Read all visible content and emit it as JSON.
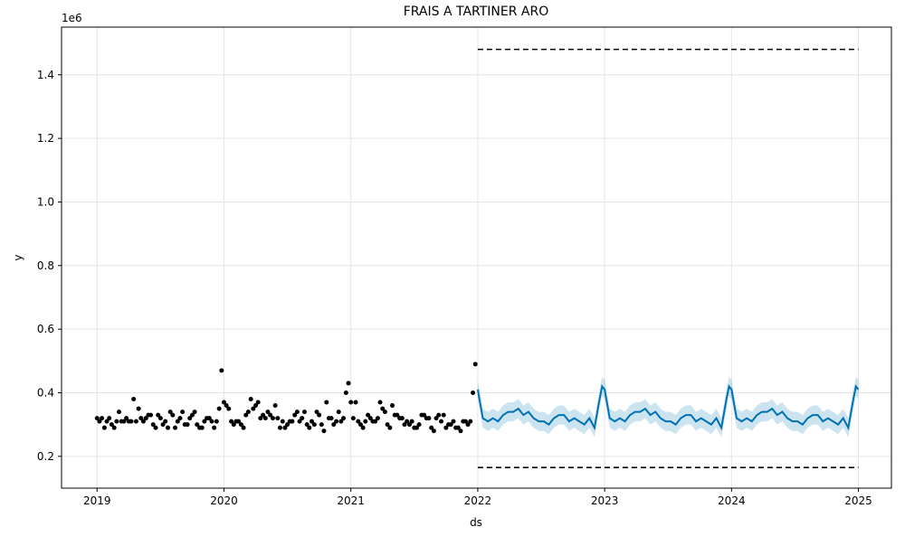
{
  "chart_data": {
    "type": "line",
    "title": "FRAIS A TARTINER ARO",
    "x_label": "ds",
    "y_label": "y",
    "y_offset_label": "1e6",
    "xlim": [
      2018.72,
      2025.26
    ],
    "ylim": [
      0.1,
      1.55
    ],
    "xticks": [
      2019,
      2020,
      2021,
      2022,
      2023,
      2024,
      2025
    ],
    "yticks": [
      0.2,
      0.4,
      0.6,
      0.8,
      {
        "value": 1.0,
        "label": "1.0"
      },
      1.2,
      1.4
    ],
    "grid": true,
    "series": [
      {
        "type": "scatter",
        "color": "#000000",
        "x": [
          2019,
          2019.019,
          2019.038,
          2019.058,
          2019.077,
          2019.096,
          2019.115,
          2019.135,
          2019.154,
          2019.173,
          2019.192,
          2019.212,
          2019.231,
          2019.25,
          2019.269,
          2019.288,
          2019.308,
          2019.327,
          2019.346,
          2019.365,
          2019.385,
          2019.404,
          2019.423,
          2019.442,
          2019.462,
          2019.481,
          2019.5,
          2019.519,
          2019.538,
          2019.558,
          2019.577,
          2019.596,
          2019.615,
          2019.635,
          2019.654,
          2019.673,
          2019.692,
          2019.712,
          2019.731,
          2019.75,
          2019.769,
          2019.788,
          2019.808,
          2019.827,
          2019.846,
          2019.865,
          2019.885,
          2019.904,
          2019.923,
          2019.942,
          2019.962,
          2019.981,
          2020,
          2020.019,
          2020.038,
          2020.058,
          2020.077,
          2020.096,
          2020.115,
          2020.135,
          2020.154,
          2020.173,
          2020.192,
          2020.212,
          2020.231,
          2020.25,
          2020.269,
          2020.288,
          2020.308,
          2020.327,
          2020.346,
          2020.365,
          2020.385,
          2020.404,
          2020.423,
          2020.442,
          2020.462,
          2020.481,
          2020.5,
          2020.519,
          2020.538,
          2020.558,
          2020.577,
          2020.596,
          2020.615,
          2020.635,
          2020.654,
          2020.673,
          2020.692,
          2020.712,
          2020.731,
          2020.75,
          2020.769,
          2020.788,
          2020.808,
          2020.827,
          2020.846,
          2020.865,
          2020.885,
          2020.904,
          2020.923,
          2020.942,
          2020.962,
          2020.981,
          2021,
          2021.019,
          2021.038,
          2021.058,
          2021.077,
          2021.096,
          2021.115,
          2021.135,
          2021.154,
          2021.173,
          2021.192,
          2021.212,
          2021.231,
          2021.25,
          2021.269,
          2021.288,
          2021.308,
          2021.327,
          2021.346,
          2021.365,
          2021.385,
          2021.404,
          2021.423,
          2021.442,
          2021.462,
          2021.481,
          2021.5,
          2021.519,
          2021.538,
          2021.558,
          2021.577,
          2021.596,
          2021.615,
          2021.635,
          2021.654,
          2021.673,
          2021.692,
          2021.712,
          2021.731,
          2021.75,
          2021.769,
          2021.788,
          2021.808,
          2021.827,
          2021.846,
          2021.865,
          2021.885,
          2021.904,
          2021.923,
          2021.942,
          2021.962,
          2021.981
        ],
        "values": [
          0.32,
          0.31,
          0.32,
          0.29,
          0.31,
          0.32,
          0.3,
          0.29,
          0.31,
          0.34,
          0.31,
          0.31,
          0.32,
          0.31,
          0.31,
          0.38,
          0.31,
          0.35,
          0.32,
          0.31,
          0.32,
          0.33,
          0.33,
          0.3,
          0.29,
          0.33,
          0.32,
          0.3,
          0.31,
          0.29,
          0.34,
          0.33,
          0.29,
          0.31,
          0.32,
          0.34,
          0.3,
          0.3,
          0.32,
          0.33,
          0.34,
          0.3,
          0.29,
          0.29,
          0.31,
          0.32,
          0.32,
          0.31,
          0.29,
          0.31,
          0.35,
          0.47,
          0.37,
          0.36,
          0.35,
          0.31,
          0.3,
          0.31,
          0.31,
          0.3,
          0.29,
          0.33,
          0.34,
          0.38,
          0.35,
          0.36,
          0.37,
          0.32,
          0.33,
          0.32,
          0.34,
          0.33,
          0.32,
          0.36,
          0.32,
          0.29,
          0.31,
          0.29,
          0.3,
          0.31,
          0.31,
          0.33,
          0.34,
          0.31,
          0.32,
          0.34,
          0.3,
          0.29,
          0.31,
          0.3,
          0.34,
          0.33,
          0.3,
          0.28,
          0.37,
          0.32,
          0.32,
          0.3,
          0.31,
          0.34,
          0.31,
          0.32,
          0.4,
          0.43,
          0.37,
          0.32,
          0.37,
          0.31,
          0.3,
          0.29,
          0.31,
          0.33,
          0.32,
          0.31,
          0.31,
          0.32,
          0.37,
          0.35,
          0.34,
          0.3,
          0.29,
          0.36,
          0.33,
          0.33,
          0.32,
          0.32,
          0.3,
          0.31,
          0.3,
          0.31,
          0.29,
          0.29,
          0.3,
          0.33,
          0.33,
          0.32,
          0.32,
          0.29,
          0.28,
          0.32,
          0.33,
          0.31,
          0.33,
          0.29,
          0.3,
          0.3,
          0.31,
          0.29,
          0.29,
          0.28,
          0.31,
          0.31,
          0.3,
          0.31,
          0.4,
          0.49
        ]
      },
      {
        "type": "line",
        "color": "#0072B2",
        "band_color": "#0072B2",
        "x": [
          2022,
          2022.04,
          2022.08,
          2022.12,
          2022.16,
          2022.2,
          2022.24,
          2022.28,
          2022.32,
          2022.36,
          2022.4,
          2022.44,
          2022.48,
          2022.52,
          2022.56,
          2022.6,
          2022.64,
          2022.68,
          2022.72,
          2022.76,
          2022.8,
          2022.84,
          2022.88,
          2022.92,
          2022.96,
          2022.98,
          2023,
          2023.04,
          2023.08,
          2023.12,
          2023.16,
          2023.2,
          2023.24,
          2023.28,
          2023.32,
          2023.36,
          2023.4,
          2023.44,
          2023.48,
          2023.52,
          2023.56,
          2023.6,
          2023.64,
          2023.68,
          2023.72,
          2023.76,
          2023.8,
          2023.84,
          2023.88,
          2023.92,
          2023.96,
          2023.98,
          2024,
          2024.04,
          2024.08,
          2024.12,
          2024.16,
          2024.2,
          2024.24,
          2024.28,
          2024.32,
          2024.36,
          2024.4,
          2024.44,
          2024.48,
          2024.52,
          2024.56,
          2024.6,
          2024.64,
          2024.68,
          2024.72,
          2024.76,
          2024.8,
          2024.84,
          2024.88,
          2024.92,
          2024.96,
          2024.98,
          2025
        ],
        "values": [
          0.41,
          0.32,
          0.31,
          0.32,
          0.31,
          0.33,
          0.34,
          0.34,
          0.35,
          0.33,
          0.34,
          0.32,
          0.31,
          0.31,
          0.3,
          0.32,
          0.33,
          0.33,
          0.31,
          0.32,
          0.31,
          0.3,
          0.32,
          0.29,
          0.38,
          0.42,
          0.41,
          0.32,
          0.31,
          0.32,
          0.31,
          0.33,
          0.34,
          0.34,
          0.35,
          0.33,
          0.34,
          0.32,
          0.31,
          0.31,
          0.3,
          0.32,
          0.33,
          0.33,
          0.31,
          0.32,
          0.31,
          0.3,
          0.32,
          0.29,
          0.38,
          0.42,
          0.41,
          0.32,
          0.31,
          0.32,
          0.31,
          0.33,
          0.34,
          0.34,
          0.35,
          0.33,
          0.34,
          0.32,
          0.31,
          0.31,
          0.3,
          0.32,
          0.33,
          0.33,
          0.31,
          0.32,
          0.31,
          0.3,
          0.32,
          0.29,
          0.38,
          0.42,
          0.41
        ],
        "lower": [
          0.38,
          0.29,
          0.28,
          0.29,
          0.28,
          0.3,
          0.31,
          0.31,
          0.32,
          0.3,
          0.31,
          0.29,
          0.28,
          0.28,
          0.27,
          0.29,
          0.3,
          0.3,
          0.28,
          0.29,
          0.28,
          0.27,
          0.29,
          0.26,
          0.35,
          0.39,
          0.38,
          0.29,
          0.28,
          0.29,
          0.28,
          0.3,
          0.31,
          0.31,
          0.32,
          0.3,
          0.31,
          0.29,
          0.28,
          0.28,
          0.27,
          0.29,
          0.3,
          0.3,
          0.28,
          0.29,
          0.28,
          0.27,
          0.29,
          0.26,
          0.35,
          0.39,
          0.38,
          0.29,
          0.28,
          0.29,
          0.28,
          0.3,
          0.31,
          0.31,
          0.32,
          0.3,
          0.31,
          0.29,
          0.28,
          0.28,
          0.27,
          0.29,
          0.3,
          0.3,
          0.28,
          0.29,
          0.28,
          0.27,
          0.29,
          0.26,
          0.35,
          0.39,
          0.38
        ],
        "upper": [
          0.44,
          0.35,
          0.34,
          0.35,
          0.34,
          0.36,
          0.37,
          0.37,
          0.38,
          0.36,
          0.37,
          0.35,
          0.34,
          0.34,
          0.33,
          0.35,
          0.36,
          0.36,
          0.34,
          0.35,
          0.34,
          0.33,
          0.35,
          0.32,
          0.41,
          0.45,
          0.44,
          0.35,
          0.34,
          0.35,
          0.34,
          0.36,
          0.37,
          0.37,
          0.38,
          0.36,
          0.37,
          0.35,
          0.34,
          0.34,
          0.33,
          0.35,
          0.36,
          0.36,
          0.34,
          0.35,
          0.34,
          0.33,
          0.35,
          0.32,
          0.41,
          0.45,
          0.44,
          0.35,
          0.34,
          0.35,
          0.34,
          0.36,
          0.37,
          0.37,
          0.38,
          0.36,
          0.37,
          0.35,
          0.34,
          0.34,
          0.33,
          0.35,
          0.36,
          0.36,
          0.34,
          0.35,
          0.34,
          0.33,
          0.35,
          0.32,
          0.41,
          0.45,
          0.44
        ]
      },
      {
        "type": "line",
        "dashed": true,
        "color": "#000000",
        "x": [
          2022,
          2025
        ],
        "values": [
          1.48,
          1.48
        ]
      },
      {
        "type": "line",
        "dashed": true,
        "color": "#000000",
        "x": [
          2022,
          2025
        ],
        "values": [
          0.165,
          0.165
        ]
      }
    ]
  }
}
